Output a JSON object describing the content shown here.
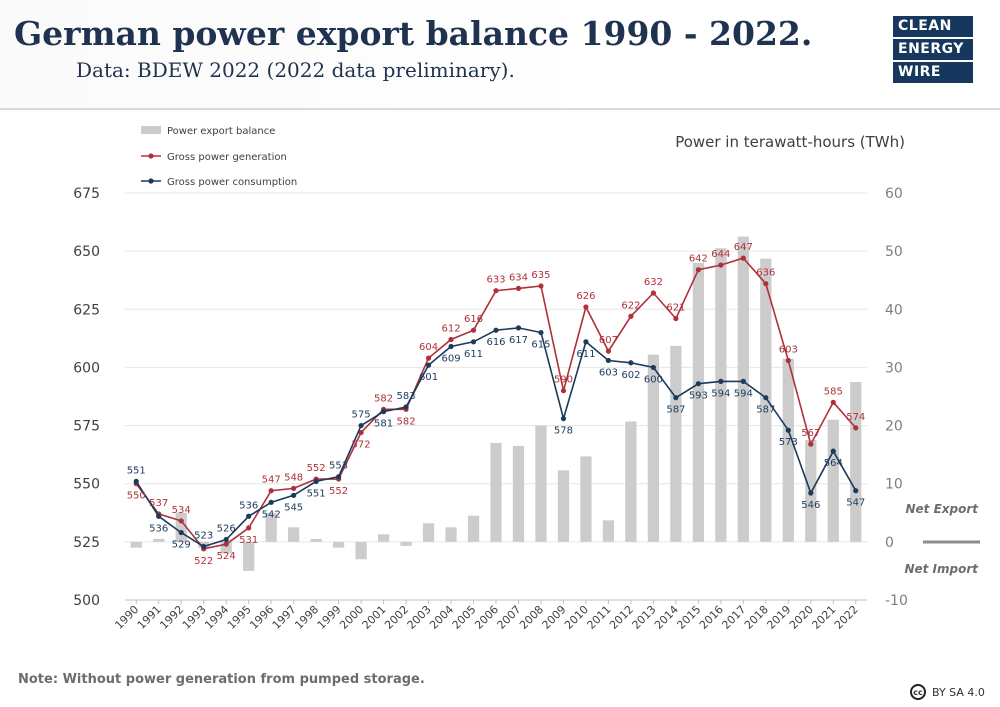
{
  "header": {
    "title": "German power export balance 1990 - 2022.",
    "subtitle": "Data: BDEW 2022 (2022 data preliminary)."
  },
  "logo": {
    "line1": "CLEAN",
    "line2": "ENERGY",
    "line3": "WIRE"
  },
  "footer": {
    "note": "Note: Without power generation from pumped storage.",
    "license": "BY SA 4.0",
    "cc_icon": "cc-icon"
  },
  "chart_data": {
    "type": "bar+line",
    "unit_label": "Power in terawatt-hours (TWh)",
    "categories": [
      "1990",
      "1991",
      "1992",
      "1993",
      "1994",
      "1995",
      "1996",
      "1997",
      "1998",
      "1999",
      "2000",
      "2001",
      "2002",
      "2003",
      "2004",
      "2005",
      "2006",
      "2007",
      "2008",
      "2009",
      "2010",
      "2011",
      "2012",
      "2013",
      "2014",
      "2015",
      "2016",
      "2017",
      "2018",
      "2019",
      "2020",
      "2021",
      "2022"
    ],
    "y_left": {
      "min": 500,
      "max": 675,
      "ticks": [
        500,
        525,
        550,
        575,
        600,
        625,
        650,
        675
      ]
    },
    "y_right": {
      "min": -10,
      "max": 60,
      "ticks": [
        -10,
        0,
        10,
        20,
        30,
        40,
        50,
        60
      ]
    },
    "legend": {
      "position": "top-left"
    },
    "series": [
      {
        "name": "Power export balance",
        "kind": "bar",
        "axis": "right",
        "color": "#cccccc",
        "values": [
          -1,
          0.5,
          5,
          -1,
          -2,
          -5,
          5,
          2.5,
          0.5,
          -1,
          -3,
          1.3,
          -0.7,
          3.2,
          2.5,
          4.5,
          17,
          16.5,
          20,
          12.3,
          14.7,
          3.7,
          20.7,
          32.2,
          33.7,
          48,
          50.5,
          52.5,
          48.7,
          31.5,
          17.5,
          21,
          27.5
        ]
      },
      {
        "name": "Gross power generation",
        "kind": "line",
        "axis": "left",
        "color": "#b0303a",
        "values": [
          550,
          537,
          534,
          522,
          524,
          531,
          547,
          548,
          552,
          552,
          572,
          582,
          582,
          604,
          612,
          616,
          633,
          634,
          635,
          590,
          626,
          607,
          622,
          632,
          621,
          642,
          644,
          647,
          636,
          603,
          567,
          585,
          574
        ]
      },
      {
        "name": "Gross power consumption",
        "kind": "line",
        "axis": "left",
        "color": "#1b3a5c",
        "values": [
          551,
          536,
          529,
          523,
          526,
          536,
          542,
          545,
          551,
          553,
          575,
          581,
          583,
          601,
          609,
          611,
          616,
          617,
          615,
          578,
          611,
          603,
          602,
          600,
          587,
          593,
          594,
          594,
          587,
          573,
          546,
          564,
          547
        ]
      }
    ],
    "annotations": {
      "net_export": "Net Export",
      "net_import": "Net Import"
    }
  }
}
